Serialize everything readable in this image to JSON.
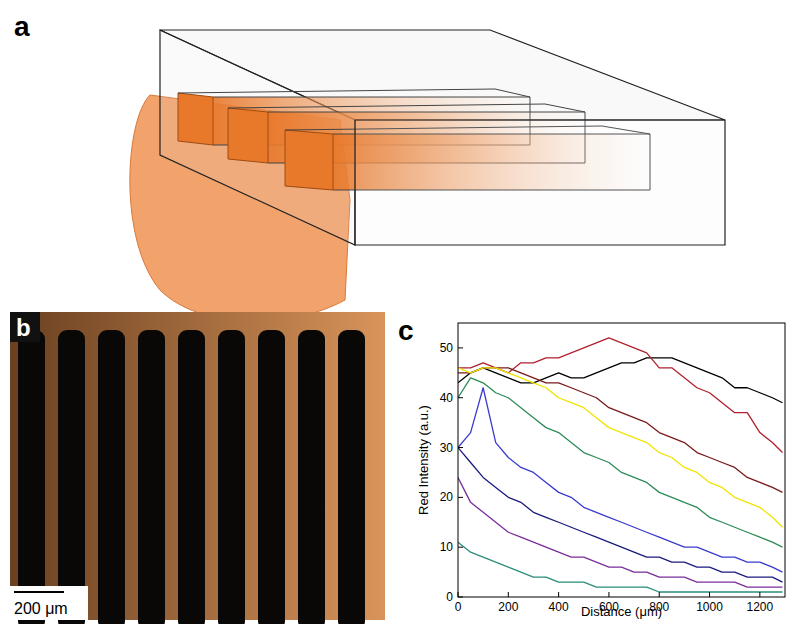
{
  "figure": {
    "panel_labels": [
      "a",
      "b",
      "c"
    ],
    "scale_bar": "200 μm"
  },
  "chart_data": {
    "type": "line",
    "x_label": "Distance (μm)",
    "y_label": "Red Intensity (a.u.)",
    "x": [
      0,
      50,
      100,
      150,
      200,
      250,
      300,
      350,
      400,
      450,
      500,
      550,
      600,
      650,
      700,
      750,
      800,
      850,
      900,
      950,
      1000,
      1050,
      1100,
      1150,
      1200,
      1250,
      1290
    ],
    "xlim": [
      0,
      1300
    ],
    "ylim": [
      0,
      55
    ],
    "xticks": [
      0,
      200,
      400,
      600,
      800,
      1000,
      1200
    ],
    "yticks": [
      0,
      10,
      20,
      30,
      40,
      50
    ],
    "series": [
      {
        "color": "#000000",
        "values": [
          43,
          45,
          46,
          45,
          44,
          43,
          43,
          44,
          45,
          44,
          44,
          45,
          46,
          47,
          47,
          48,
          48,
          48,
          47,
          46,
          45,
          44,
          42,
          42,
          41,
          40,
          39
        ]
      },
      {
        "color": "#b0202e",
        "values": [
          46,
          46,
          47,
          46,
          45,
          47,
          47,
          48,
          48,
          49,
          50,
          51,
          52,
          51,
          50,
          49,
          46,
          46,
          44,
          42,
          41,
          39,
          37,
          37,
          33,
          31,
          29
        ]
      },
      {
        "color": "#7a1a1a",
        "values": [
          45,
          45,
          46,
          46,
          46,
          45,
          44,
          43,
          43,
          42,
          41,
          40,
          38,
          37,
          36,
          35,
          33,
          32,
          31,
          29,
          28,
          27,
          26,
          24,
          23,
          22,
          21
        ]
      },
      {
        "color": "#f0e400",
        "values": [
          46,
          45,
          46,
          46,
          45,
          44,
          43,
          42,
          40,
          39,
          38,
          36,
          34,
          33,
          32,
          31,
          29,
          28,
          26,
          25,
          23,
          22,
          20,
          19,
          18,
          16,
          14
        ]
      },
      {
        "color": "#2e8b57",
        "values": [
          40,
          44,
          43,
          41,
          40,
          38,
          36,
          34,
          33,
          31,
          29,
          28,
          27,
          25,
          24,
          23,
          21,
          20,
          19,
          18,
          16,
          15,
          14,
          13,
          12,
          11,
          10
        ]
      },
      {
        "color": "#3a3ad0",
        "values": [
          30,
          33,
          42,
          31,
          28,
          26,
          25,
          23,
          21,
          20,
          18,
          17,
          16,
          15,
          14,
          13,
          12,
          11,
          10,
          10,
          9,
          8,
          8,
          7,
          7,
          6,
          5
        ]
      },
      {
        "color": "#1a1a80",
        "values": [
          30,
          27,
          24,
          22,
          20,
          19,
          17,
          16,
          15,
          14,
          13,
          12,
          11,
          10,
          9,
          8,
          8,
          7,
          7,
          6,
          6,
          5,
          5,
          4,
          4,
          4,
          3
        ]
      },
      {
        "color": "#7a2d9a",
        "values": [
          24,
          19,
          17,
          15,
          13,
          12,
          11,
          10,
          9,
          8,
          8,
          7,
          6,
          6,
          5,
          5,
          4,
          4,
          4,
          3,
          3,
          3,
          3,
          2,
          2,
          2,
          2
        ]
      },
      {
        "color": "#2a8c7a",
        "values": [
          11,
          9,
          8,
          7,
          6,
          5,
          4,
          4,
          3,
          3,
          3,
          2,
          2,
          2,
          2,
          2,
          1,
          1,
          1,
          1,
          1,
          1,
          1,
          1,
          1,
          1,
          1
        ]
      }
    ]
  }
}
